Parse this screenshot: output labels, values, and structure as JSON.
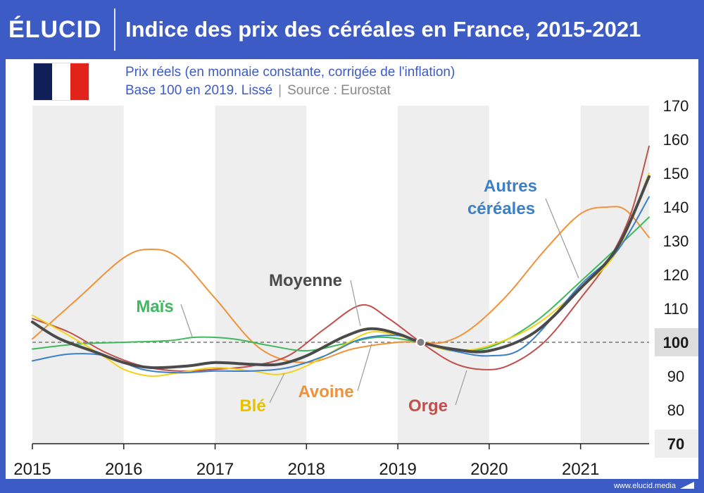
{
  "header": {
    "logo": "ÉLUCID",
    "title": "Indice des prix des céréales en France, 2015-2021"
  },
  "subtitle_line1": "Prix réels (en monnaie constante, corrigée de l'inflation)",
  "subtitle_base": "Base 100 en 2019. Lissé",
  "subtitle_separator": "|",
  "subtitle_source": "Source : Eurostat",
  "footer": {
    "url": "www.elucid.media"
  },
  "colors": {
    "header_bg": "#3d5bc4",
    "band": "#eeeeee",
    "reference_line": "#777777"
  },
  "flag": "france-flag",
  "chart_data": {
    "type": "line",
    "x_ticks": [
      "2015",
      "2016",
      "2017",
      "2018",
      "2019",
      "2020",
      "2021"
    ],
    "xlim": [
      2015,
      2021.75
    ],
    "ylim": [
      70,
      170
    ],
    "y_ticks": [
      170,
      160,
      150,
      140,
      130,
      120,
      110,
      100,
      90,
      80,
      70
    ],
    "y_ticks_highlighted": [
      100,
      70
    ],
    "reference_value": 100,
    "reference_point": {
      "x": 2019.25,
      "y": 100
    },
    "series": [
      {
        "name": "Avoine",
        "color": "#f0923a",
        "width": 2,
        "x": [
          2015.0,
          2015.5,
          2016.0,
          2016.3,
          2016.6,
          2017.0,
          2017.5,
          2018.0,
          2018.5,
          2019.0,
          2019.25,
          2019.5,
          2019.8,
          2020.2,
          2020.6,
          2021.0,
          2021.3,
          2021.5,
          2021.75
        ],
        "y": [
          101,
          113,
          125,
          127.5,
          125,
          113,
          98,
          94,
          98,
          100,
          100,
          100,
          104,
          114,
          127,
          138,
          140,
          139,
          131
        ]
      },
      {
        "name": "Orge",
        "color": "#c0504d",
        "width": 2,
        "x": [
          2015.0,
          2015.4,
          2015.8,
          2016.2,
          2016.6,
          2017.0,
          2017.4,
          2017.8,
          2018.2,
          2018.6,
          2018.9,
          2019.25,
          2019.6,
          2019.9,
          2020.2,
          2020.6,
          2021.0,
          2021.3,
          2021.55,
          2021.75
        ],
        "y": [
          107,
          103,
          97,
          93,
          91.5,
          92,
          93,
          96,
          104,
          111,
          107,
          100,
          94,
          92,
          93,
          100,
          113,
          124,
          138,
          158
        ]
      },
      {
        "name": "Maïs",
        "color": "#3fb95e",
        "width": 2,
        "x": [
          2015.0,
          2015.5,
          2016.0,
          2016.5,
          2016.8,
          2017.2,
          2017.6,
          2018.0,
          2018.4,
          2018.8,
          2019.25,
          2019.6,
          2020.0,
          2020.5,
          2021.0,
          2021.4,
          2021.75
        ],
        "y": [
          98,
          99.5,
          100,
          100.5,
          101.5,
          101,
          99,
          97.5,
          99.5,
          101.5,
          100,
          98,
          98.5,
          106,
          118,
          128,
          137
        ]
      },
      {
        "name": "Blé",
        "color": "#f2d21b",
        "width": 2,
        "x": [
          2015.0,
          2015.4,
          2015.8,
          2016.0,
          2016.3,
          2016.6,
          2017.0,
          2017.4,
          2017.7,
          2018.0,
          2018.4,
          2018.7,
          2019.0,
          2019.25,
          2019.6,
          2020.0,
          2020.5,
          2021.0,
          2021.4,
          2021.75
        ],
        "y": [
          108,
          102,
          95.5,
          92,
          90,
          91,
          92.5,
          91.5,
          90.5,
          93,
          99,
          103,
          102,
          100,
          97.5,
          99,
          105,
          116,
          127,
          150
        ]
      },
      {
        "name": "Autres céréales",
        "color": "#3b80c6",
        "width": 2,
        "x": [
          2015.0,
          2015.4,
          2015.8,
          2016.2,
          2016.6,
          2017.0,
          2017.4,
          2017.8,
          2018.2,
          2018.6,
          2019.0,
          2019.25,
          2019.6,
          2020.0,
          2020.4,
          2021.0,
          2021.4,
          2021.75
        ],
        "y": [
          94.5,
          96.5,
          96,
          92,
          91,
          91.5,
          91.5,
          92.5,
          96,
          101,
          102,
          100,
          97.5,
          96,
          99,
          117,
          127,
          143
        ]
      },
      {
        "name": "Moyenne",
        "color": "#4a4a4a",
        "width": 4,
        "x": [
          2015.0,
          2015.3,
          2015.7,
          2016.0,
          2016.3,
          2016.7,
          2017.0,
          2017.4,
          2017.7,
          2018.0,
          2018.4,
          2018.7,
          2019.0,
          2019.25,
          2019.6,
          2020.0,
          2020.5,
          2021.0,
          2021.4,
          2021.75
        ],
        "y": [
          106,
          101,
          97,
          94,
          92.5,
          93,
          94,
          93.5,
          93.5,
          96,
          101.5,
          104,
          102.5,
          100,
          98,
          97.5,
          103,
          116,
          128,
          149
        ]
      }
    ],
    "labels": [
      {
        "text": "Maïs",
        "color": "#3fb95e",
        "series": "Maïs"
      },
      {
        "text": "Moyenne",
        "color": "#4a4a4a",
        "series": "Moyenne"
      },
      {
        "text": "Autres",
        "color": "#3b80c6",
        "series": "Autres céréales"
      },
      {
        "text": "céréales",
        "color": "#3b80c6",
        "series": "Autres céréales"
      },
      {
        "text": "Blé",
        "color": "#e6c100",
        "series": "Blé"
      },
      {
        "text": "Avoine",
        "color": "#f0923a",
        "series": "Avoine"
      },
      {
        "text": "Orge",
        "color": "#c0504d",
        "series": "Orge"
      }
    ]
  }
}
